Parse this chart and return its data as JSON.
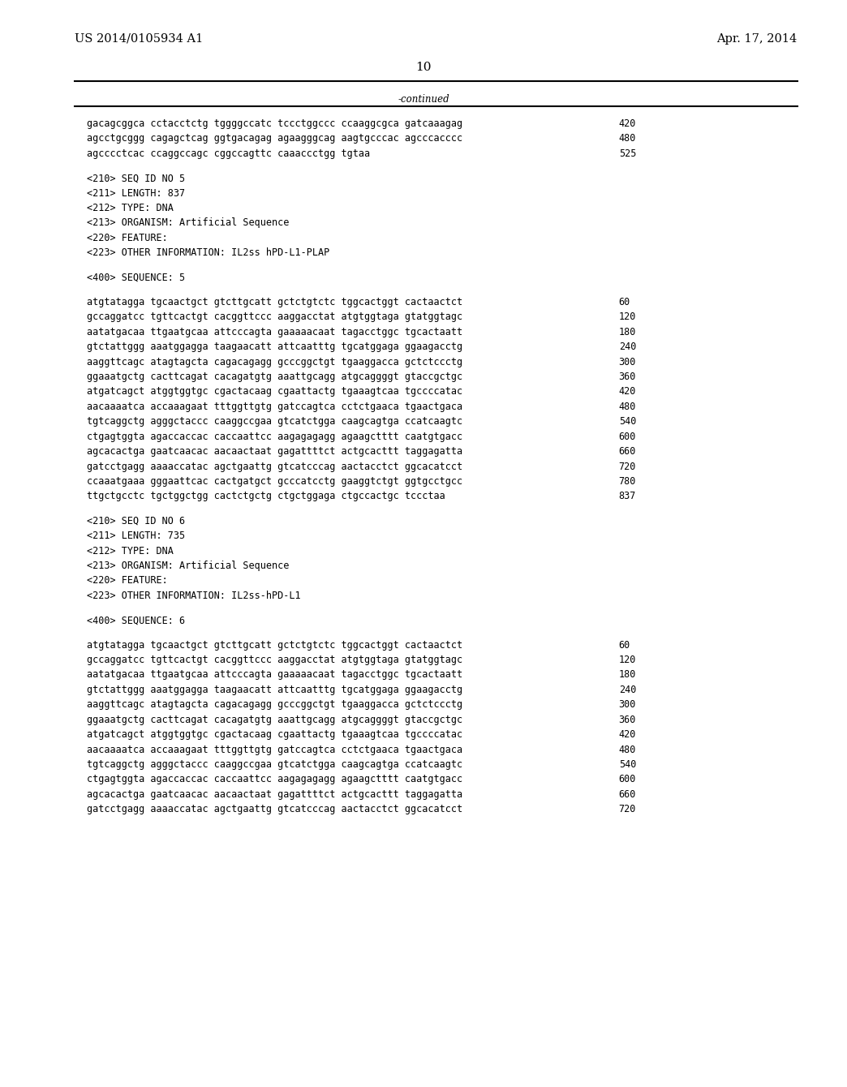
{
  "background_color": "#ffffff",
  "header_left": "US 2014/0105934 A1",
  "header_right": "Apr. 17, 2014",
  "page_number": "10",
  "continued_label": "-continued",
  "font_size_header": 10.5,
  "font_size_body": 8.5,
  "font_size_page": 11,
  "content_lines": [
    {
      "text": "gacagcggca cctacctctg tggggccatc tccctggccc ccaaggcgca gatcaaagag",
      "num": "420",
      "type": "seq"
    },
    {
      "text": "agcctgcggg cagagctcag ggtgacagag agaagggcag aagtgcccac agcccacccc",
      "num": "480",
      "type": "seq"
    },
    {
      "text": "agcccctcac ccaggccagc cggccagttc caaaccctgg tgtaa",
      "num": "525",
      "type": "seq"
    },
    {
      "text": "",
      "type": "blank"
    },
    {
      "text": "<210> SEQ ID NO 5",
      "type": "meta"
    },
    {
      "text": "<211> LENGTH: 837",
      "type": "meta"
    },
    {
      "text": "<212> TYPE: DNA",
      "type": "meta"
    },
    {
      "text": "<213> ORGANISM: Artificial Sequence",
      "type": "meta"
    },
    {
      "text": "<220> FEATURE:",
      "type": "meta"
    },
    {
      "text": "<223> OTHER INFORMATION: IL2ss hPD-L1-PLAP",
      "type": "meta"
    },
    {
      "text": "",
      "type": "blank"
    },
    {
      "text": "<400> SEQUENCE: 5",
      "type": "meta"
    },
    {
      "text": "",
      "type": "blank"
    },
    {
      "text": "atgtatagga tgcaactgct gtcttgcatt gctctgtctc tggcactggt cactaactct",
      "num": "60",
      "type": "seq"
    },
    {
      "text": "gccaggatcc tgttcactgt cacggttccc aaggacctat atgtggtaga gtatggtagc",
      "num": "120",
      "type": "seq"
    },
    {
      "text": "aatatgacaa ttgaatgcaa attcccagta gaaaaacaat tagacctggc tgcactaatt",
      "num": "180",
      "type": "seq"
    },
    {
      "text": "gtctattggg aaatggagga taagaacatt attcaatttg tgcatggaga ggaagacctg",
      "num": "240",
      "type": "seq"
    },
    {
      "text": "aaggttcagc atagtagcta cagacagagg gcccggctgt tgaaggacca gctctccctg",
      "num": "300",
      "type": "seq"
    },
    {
      "text": "ggaaatgctg cacttcagat cacagatgtg aaattgcagg atgcaggggt gtaccgctgc",
      "num": "360",
      "type": "seq"
    },
    {
      "text": "atgatcagct atggtggtgc cgactacaag cgaattactg tgaaagtcaa tgccccatac",
      "num": "420",
      "type": "seq"
    },
    {
      "text": "aacaaaatca accaaagaat tttggttgtg gatccagtca cctctgaaca tgaactgaca",
      "num": "480",
      "type": "seq"
    },
    {
      "text": "tgtcaggctg agggctaccc caaggccgaa gtcatctgga caagcagtga ccatcaagtc",
      "num": "540",
      "type": "seq"
    },
    {
      "text": "ctgagtggta agaccaccac caccaattcc aagagagagg agaagctttt caatgtgacc",
      "num": "600",
      "type": "seq"
    },
    {
      "text": "agcacactga gaatcaacac aacaactaat gagattttct actgcacttt taggagatta",
      "num": "660",
      "type": "seq"
    },
    {
      "text": "gatcctgagg aaaaccatac agctgaattg gtcatcccag aactacctct ggcacatcct",
      "num": "720",
      "type": "seq"
    },
    {
      "text": "ccaaatgaaa gggaattcac cactgatgct gcccatcctg gaaggtctgt ggtgcctgcc",
      "num": "780",
      "type": "seq"
    },
    {
      "text": "ttgctgcctc tgctggctgg cactctgctg ctgctggaga ctgccactgc tccctaa",
      "num": "837",
      "type": "seq"
    },
    {
      "text": "",
      "type": "blank"
    },
    {
      "text": "<210> SEQ ID NO 6",
      "type": "meta"
    },
    {
      "text": "<211> LENGTH: 735",
      "type": "meta"
    },
    {
      "text": "<212> TYPE: DNA",
      "type": "meta"
    },
    {
      "text": "<213> ORGANISM: Artificial Sequence",
      "type": "meta"
    },
    {
      "text": "<220> FEATURE:",
      "type": "meta"
    },
    {
      "text": "<223> OTHER INFORMATION: IL2ss-hPD-L1",
      "type": "meta"
    },
    {
      "text": "",
      "type": "blank"
    },
    {
      "text": "<400> SEQUENCE: 6",
      "type": "meta"
    },
    {
      "text": "",
      "type": "blank"
    },
    {
      "text": "atgtatagga tgcaactgct gtcttgcatt gctctgtctc tggcactggt cactaactct",
      "num": "60",
      "type": "seq"
    },
    {
      "text": "gccaggatcc tgttcactgt cacggttccc aaggacctat atgtggtaga gtatggtagc",
      "num": "120",
      "type": "seq"
    },
    {
      "text": "aatatgacaa ttgaatgcaa attcccagta gaaaaacaat tagacctggc tgcactaatt",
      "num": "180",
      "type": "seq"
    },
    {
      "text": "gtctattggg aaatggagga taagaacatt attcaatttg tgcatggaga ggaagacctg",
      "num": "240",
      "type": "seq"
    },
    {
      "text": "aaggttcagc atagtagcta cagacagagg gcccggctgt tgaaggacca gctctccctg",
      "num": "300",
      "type": "seq"
    },
    {
      "text": "ggaaatgctg cacttcagat cacagatgtg aaattgcagg atgcaggggt gtaccgctgc",
      "num": "360",
      "type": "seq"
    },
    {
      "text": "atgatcagct atggtggtgc cgactacaag cgaattactg tgaaagtcaa tgccccatac",
      "num": "420",
      "type": "seq"
    },
    {
      "text": "aacaaaatca accaaagaat tttggttgtg gatccagtca cctctgaaca tgaactgaca",
      "num": "480",
      "type": "seq"
    },
    {
      "text": "tgtcaggctg agggctaccc caaggccgaa gtcatctgga caagcagtga ccatcaagtc",
      "num": "540",
      "type": "seq"
    },
    {
      "text": "ctgagtggta agaccaccac caccaattcc aagagagagg agaagctttt caatgtgacc",
      "num": "600",
      "type": "seq"
    },
    {
      "text": "agcacactga gaatcaacac aacaactaat gagattttct actgcacttt taggagatta",
      "num": "660",
      "type": "seq"
    },
    {
      "text": "gatcctgagg aaaaccatac agctgaattg gtcatcccag aactacctct ggcacatcct",
      "num": "720",
      "type": "seq"
    }
  ]
}
